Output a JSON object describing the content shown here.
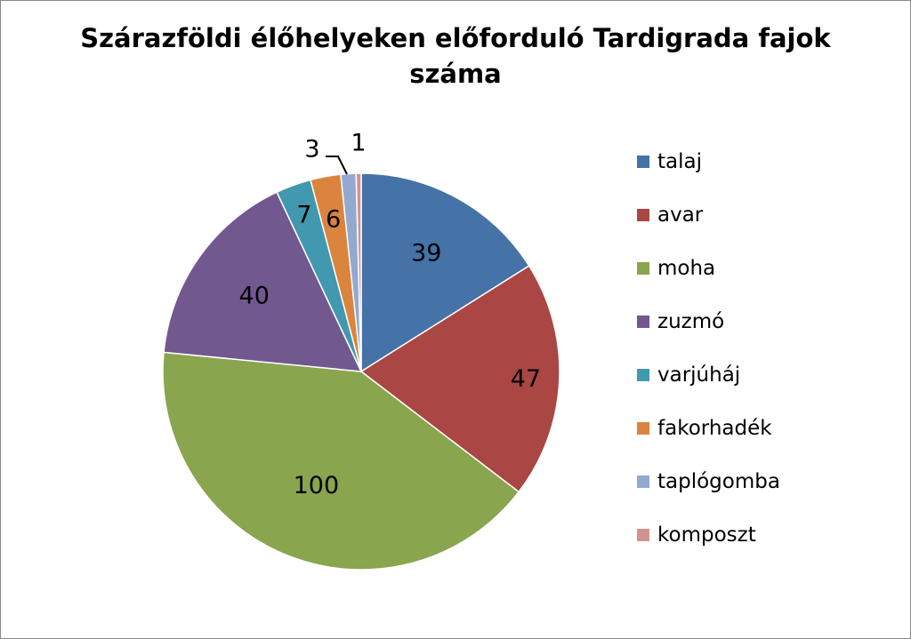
{
  "chart_data": {
    "type": "pie",
    "title": "Szárazföldi élőhelyeken előforduló Tardigrada fajok száma",
    "title_lines": [
      "Szárazföldi élőhelyeken előforduló Tardigrada fajok",
      "száma"
    ],
    "legend_position": "right",
    "slices": [
      {
        "label": "talaj",
        "value": 39,
        "color": "#4572A7"
      },
      {
        "label": "avar",
        "value": 47,
        "color": "#AA4643"
      },
      {
        "label": "moha",
        "value": 100,
        "color": "#89A54E"
      },
      {
        "label": "zuzmó",
        "value": 40,
        "color": "#71588F"
      },
      {
        "label": "varjúháj",
        "value": 7,
        "color": "#4198AF"
      },
      {
        "label": "fakorhadék",
        "value": 6,
        "color": "#DB843D"
      },
      {
        "label": "taplógomba",
        "value": 3,
        "color": "#93A9CF"
      },
      {
        "label": "komposzt",
        "value": 1,
        "color": "#D19392"
      }
    ]
  }
}
